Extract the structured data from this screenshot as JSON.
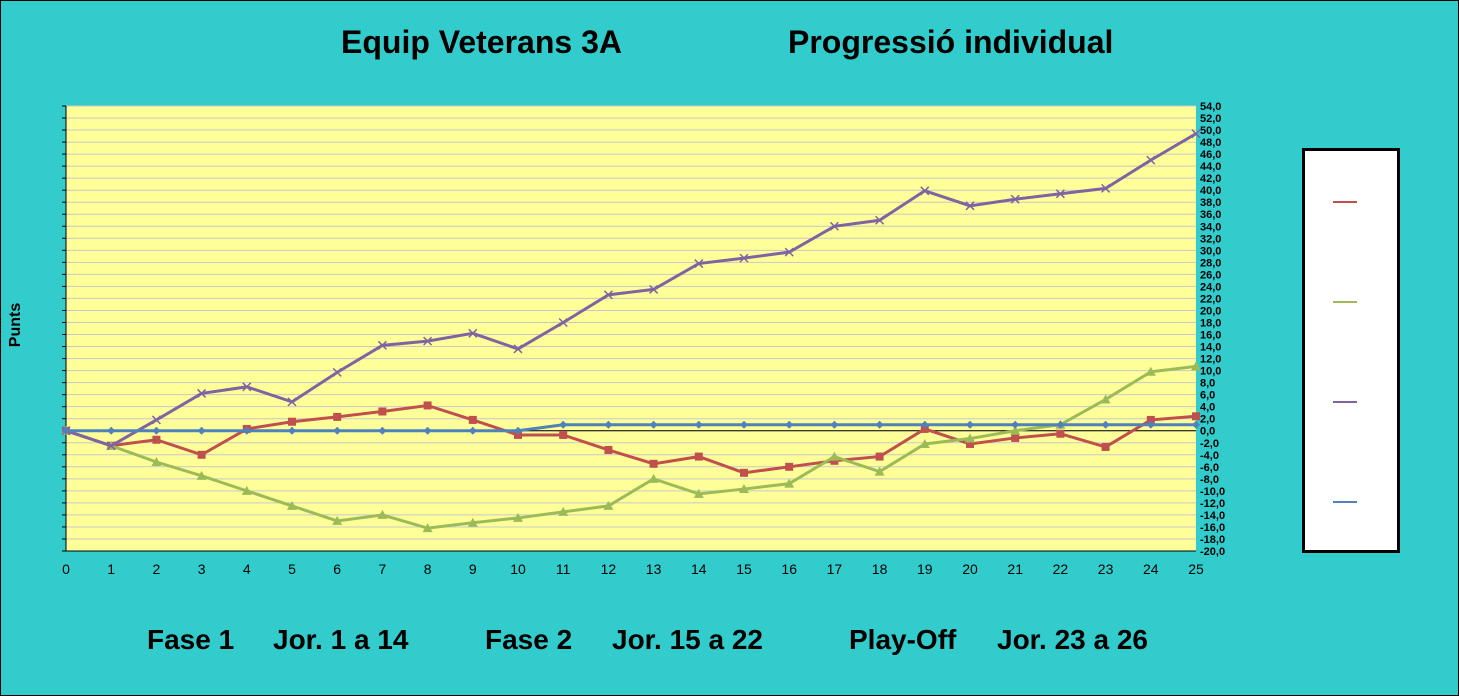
{
  "header": {
    "title_left": "Equip Veterans 3A",
    "title_right": "Progressió individual"
  },
  "footer": {
    "phase1": "Fase 1",
    "phase1_range": "Jor.  1 a 14",
    "phase2": "Fase 2",
    "phase2_range": "Jor. 15 a 22",
    "phase3": "Play-Off",
    "phase3_range": "Jor. 23 a 26"
  },
  "colors": {
    "background": "#33CCCC",
    "plot_area": "#FFFF99",
    "series_red": "#C0504D",
    "series_green": "#9BBB59",
    "series_purple": "#8064A2",
    "series_blue": "#4F81BD"
  },
  "chart_data": {
    "type": "line",
    "title": "",
    "ylabel": "Punts",
    "xlabel": "",
    "x": [
      0,
      1,
      2,
      3,
      4,
      5,
      6,
      7,
      8,
      9,
      10,
      11,
      12,
      13,
      14,
      15,
      16,
      17,
      18,
      19,
      20,
      21,
      22,
      23,
      24,
      25
    ],
    "xlim": [
      0,
      25
    ],
    "ylim": [
      -20,
      54
    ],
    "ytick_step": 2,
    "grid": true,
    "legend_position": "right",
    "series": [
      {
        "color": "#C0504D",
        "marker": "square",
        "values": [
          0,
          -2.5,
          -1.5,
          -4,
          0.3,
          1.5,
          2.3,
          3.2,
          4.2,
          1.8,
          -0.7,
          -0.7,
          -3.2,
          -5.5,
          -4.3,
          -7,
          -6,
          -5,
          -4.3,
          0.3,
          -2.2,
          -1.2,
          -0.5,
          -2.7,
          1.8,
          2.4
        ]
      },
      {
        "color": "#9BBB59",
        "marker": "triangle",
        "values": [
          0,
          -2.5,
          -5.2,
          -7.5,
          -10,
          -12.5,
          -15,
          -14,
          -16.2,
          -15.3,
          -14.5,
          -13.5,
          -12.5,
          -8,
          -10.5,
          -9.7,
          -8.8,
          -4.3,
          -6.8,
          -2.2,
          -1.3,
          0,
          1,
          5.2,
          9.8,
          10.7
        ]
      },
      {
        "color": "#8064A2",
        "marker": "x",
        "values": [
          0,
          -2.5,
          1.8,
          6.2,
          7.3,
          4.8,
          9.7,
          14.2,
          14.9,
          16.2,
          13.6,
          18,
          22.6,
          23.5,
          27.8,
          28.7,
          29.7,
          34,
          35,
          39.9,
          37.4,
          38.5,
          39.4,
          40.3,
          45,
          49.4
        ]
      },
      {
        "color": "#4F81BD",
        "marker": "diamond",
        "values": [
          0,
          0,
          0,
          0,
          0,
          0,
          0,
          0,
          0,
          0,
          0,
          1,
          1,
          1,
          1,
          1,
          1,
          1,
          1,
          1,
          1,
          1,
          1,
          1,
          1,
          1
        ]
      }
    ]
  }
}
